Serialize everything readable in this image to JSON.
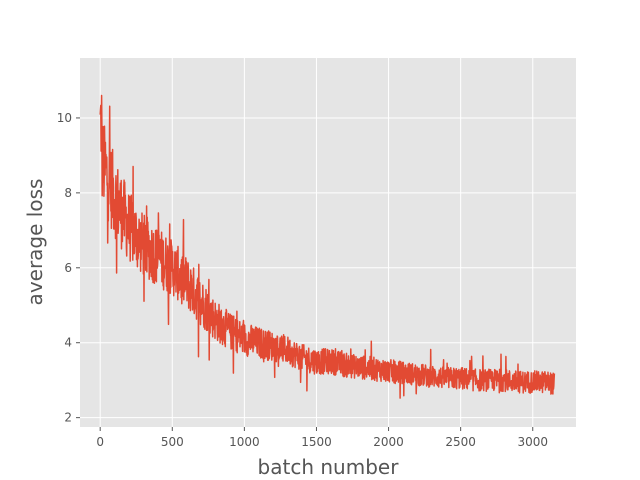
{
  "chart_data": {
    "type": "line",
    "title": "",
    "xlabel": "batch number",
    "ylabel": "average loss",
    "xlim": [
      -140,
      3300
    ],
    "ylim": [
      1.75,
      11.6
    ],
    "xticks": [
      0,
      500,
      1000,
      1500,
      2000,
      2500,
      3000
    ],
    "yticks": [
      2,
      4,
      6,
      8,
      10
    ],
    "grid": true,
    "legend": "none",
    "colors": {
      "line": "#E24A33",
      "plot_background": "#E5E5E5",
      "grid": "#FFFFFF",
      "text": "#555555"
    },
    "series": [
      {
        "x": [
          0,
          100,
          200,
          300,
          400,
          500,
          600,
          700,
          800,
          900,
          1000,
          1100,
          1200,
          1300,
          1400,
          1500,
          1600,
          1700,
          1800,
          1900,
          2000,
          2100,
          2200,
          2300,
          2400,
          2500,
          2600,
          2700,
          2800,
          2900,
          3000,
          3100,
          3150
        ],
        "y": [
          9.0,
          7.9,
          7.1,
          6.6,
          6.3,
          6.0,
          5.6,
          5.1,
          4.6,
          4.3,
          4.1,
          4.0,
          3.9,
          3.8,
          3.6,
          3.5,
          3.5,
          3.4,
          3.35,
          3.3,
          3.25,
          3.2,
          3.15,
          3.1,
          3.05,
          3.05,
          3.0,
          3.0,
          3.0,
          2.95,
          2.95,
          2.95,
          2.9
        ],
        "noise": [
          1.2,
          1.1,
          0.95,
          0.85,
          0.8,
          0.75,
          0.7,
          0.65,
          0.55,
          0.5,
          0.45,
          0.42,
          0.4,
          0.38,
          0.36,
          0.35,
          0.34,
          0.33,
          0.32,
          0.32,
          0.31,
          0.3,
          0.3,
          0.3,
          0.3,
          0.3,
          0.3,
          0.3,
          0.3,
          0.3,
          0.3,
          0.3,
          0.3
        ]
      }
    ]
  }
}
